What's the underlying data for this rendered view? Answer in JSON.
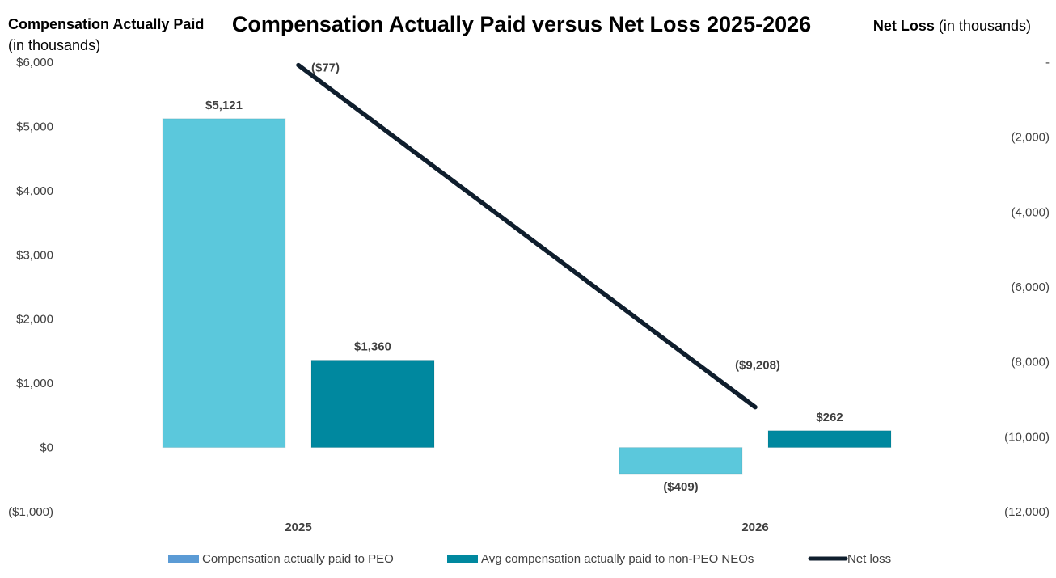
{
  "chart_data": {
    "type": "bar",
    "title": "Compensation Actually Paid versus Net Loss 2025-2026",
    "left_axis": {
      "label_bold": "Compensation Actually Paid",
      "label_rest": "(in thousands)"
    },
    "right_axis": {
      "label_bold": "Net Loss",
      "label_rest": "(in thousands)"
    },
    "categories": [
      "2025",
      "2026"
    ],
    "ylim_left": [
      -1000,
      6000
    ],
    "ylim_right": [
      -12000,
      0
    ],
    "left_ticks": [
      {
        "value": 6000,
        "label": "$6,000"
      },
      {
        "value": 5000,
        "label": "$5,000"
      },
      {
        "value": 4000,
        "label": "$4,000"
      },
      {
        "value": 3000,
        "label": "$3,000"
      },
      {
        "value": 2000,
        "label": "$2,000"
      },
      {
        "value": 1000,
        "label": "$1,000"
      },
      {
        "value": 0,
        "label": "$0"
      },
      {
        "value": -1000,
        "label": "($1,000)"
      }
    ],
    "right_ticks": [
      {
        "value": 0,
        "label": "-"
      },
      {
        "value": -2000,
        "label": "(2,000)"
      },
      {
        "value": -4000,
        "label": "(4,000)"
      },
      {
        "value": -6000,
        "label": "(6,000)"
      },
      {
        "value": -8000,
        "label": "(8,000)"
      },
      {
        "value": -10000,
        "label": "(10,000)"
      },
      {
        "value": -12000,
        "label": "(12,000)"
      }
    ],
    "series": [
      {
        "name": "Compensation actually paid to PEO",
        "type": "bar",
        "axis": "left",
        "color": "#5BC8DC",
        "values": [
          5121,
          -409
        ],
        "labels": [
          "$5,121",
          "($409)"
        ]
      },
      {
        "name": "Avg compensation actually paid to non-PEO NEOs",
        "type": "bar",
        "axis": "left",
        "color": "#00889F",
        "values": [
          1360,
          262
        ],
        "labels": [
          "$1,360",
          "$262"
        ]
      },
      {
        "name": "Net loss",
        "type": "line",
        "axis": "right",
        "color": "#0F1E2D",
        "values": [
          -77,
          -9208
        ],
        "labels": [
          "($77)",
          "($9,208)"
        ]
      }
    ],
    "legend_position": "bottom",
    "grid": false
  }
}
